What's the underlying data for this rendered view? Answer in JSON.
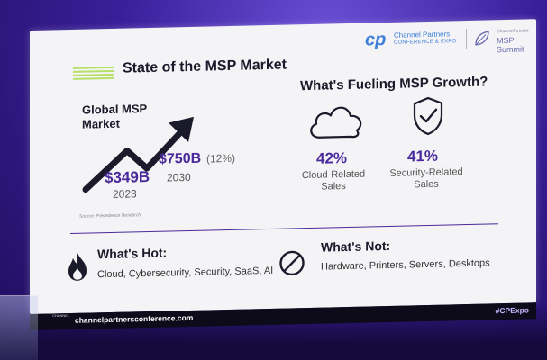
{
  "slide": {
    "title": "State of the MSP Market",
    "logo": {
      "mark": "cp",
      "line1": "Channel Partners",
      "line2": "CONFERENCE & EXPO",
      "right_top": "ChannelFutures",
      "right_bottom": "MSP Summit"
    },
    "market": {
      "label": "Global MSP Market",
      "value_2023": "$349B",
      "year_2023": "2023",
      "value_2030": "$750B",
      "growth": "(12%)",
      "year_2030": "2030",
      "source": "Source: Precedence Research"
    },
    "fueling": {
      "title": "What's Fueling MSP Growth?",
      "cloud_pct": "42%",
      "cloud_label": "Cloud-Related Sales",
      "security_pct": "41%",
      "security_label": "Security-Related Sales"
    },
    "hot": {
      "title": "What's Hot:",
      "list": "Cloud, Cybersecurity, Security, SaaS, AI"
    },
    "not": {
      "title": "What's Not:",
      "list": "Hardware, Printers, Servers, Desktops"
    },
    "footer": {
      "url": "channelpartnersconference.com",
      "hashtag": "#CPExpo"
    }
  },
  "podium_label": "CHANNEL",
  "colors": {
    "accent_purple": "#4a2a9a",
    "stripe_green": "#b7e06a",
    "logo_blue": "#3d7fd8",
    "background": "#3a1f9a"
  },
  "icons": [
    "growth-arrow-icon",
    "cloud-icon",
    "shield-check-icon",
    "fire-icon",
    "prohibited-icon"
  ]
}
